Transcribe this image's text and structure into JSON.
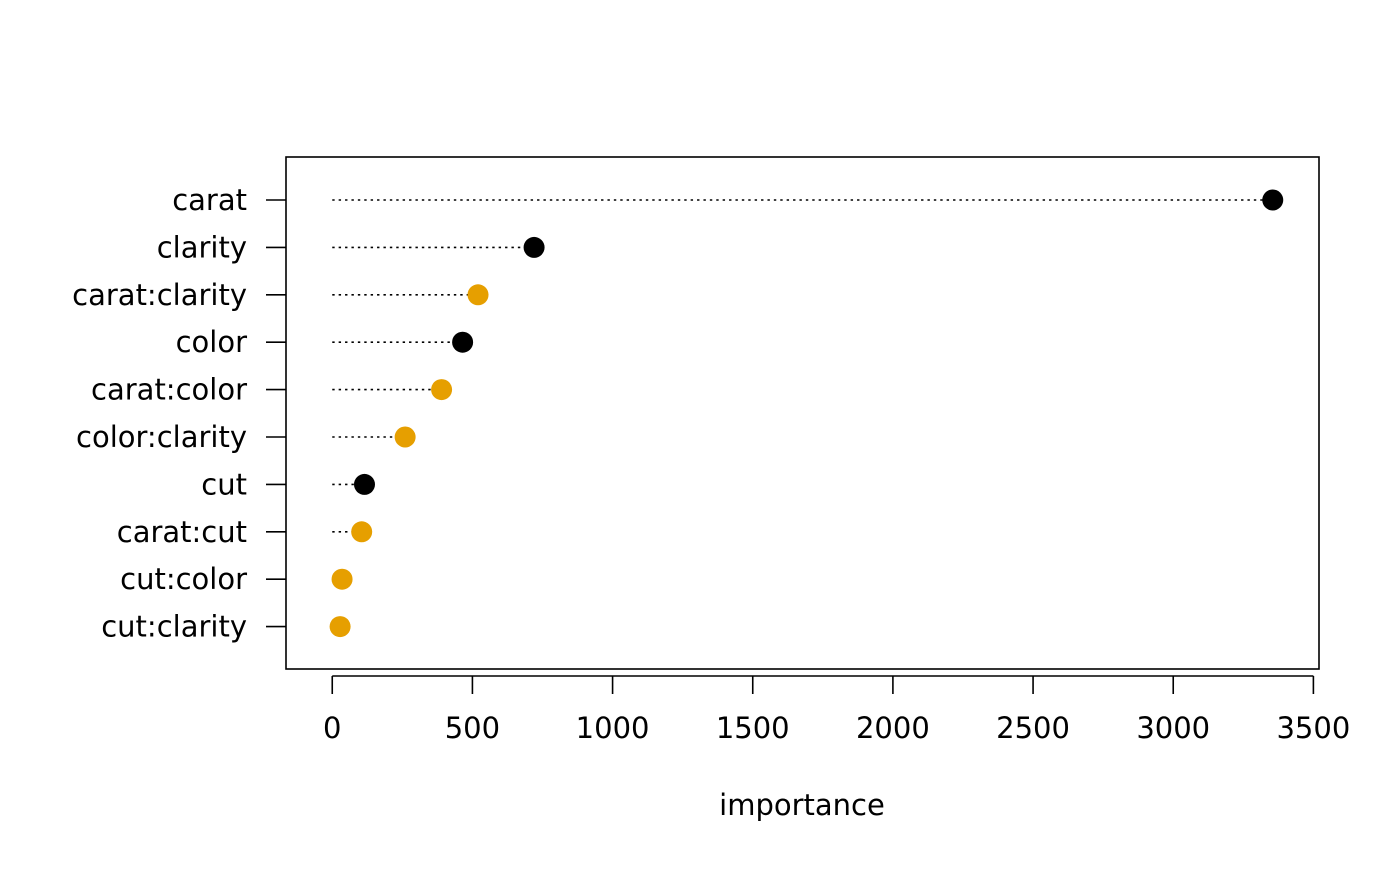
{
  "chart_data": {
    "type": "dotplot",
    "title": "",
    "xlabel": "importance",
    "ylabel": "",
    "xlim": [
      -165,
      3520
    ],
    "x_ticks": [
      0,
      500,
      1000,
      1500,
      2000,
      2500,
      3000,
      3500
    ],
    "x_tick_labels": [
      "0",
      "500",
      "1000",
      "1500",
      "2000",
      "2500",
      "3000",
      "3500"
    ],
    "grid": false,
    "legend": "none",
    "categories": [
      "carat",
      "clarity",
      "carat:clarity",
      "color",
      "carat:color",
      "color:clarity",
      "cut",
      "carat:cut",
      "cut:color",
      "cut:clarity"
    ],
    "values": [
      3355,
      720,
      520,
      465,
      390,
      260,
      115,
      105,
      35,
      28
    ],
    "point_types": [
      "main",
      "main",
      "interaction",
      "main",
      "interaction",
      "interaction",
      "main",
      "interaction",
      "interaction",
      "interaction"
    ],
    "colors": {
      "main": "#000000",
      "interaction": "#E69F00",
      "frame": "#000000",
      "leader": "#000000"
    }
  }
}
